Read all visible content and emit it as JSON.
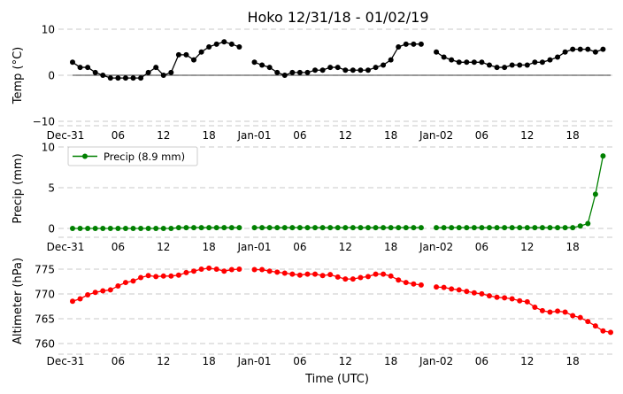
{
  "title": "Hoko 12/31/18 - 01/02/19",
  "xlabel": "Time (UTC)",
  "xticks": [
    "Dec-31",
    "06",
    "12",
    "18",
    "Jan-01",
    "06",
    "12",
    "18",
    "Jan-02",
    "06",
    "12",
    "18"
  ],
  "chart_data": [
    {
      "type": "line",
      "title": "Hoko 12/31/18 - 01/02/19",
      "ylabel": "Temp (°C)",
      "xlabel": "",
      "x_hours": "0..71 (hourly, first point at Dec-31 00 UTC)",
      "xlim_hours": [
        0,
        71
      ],
      "ylim": [
        -11,
        10
      ],
      "yticks": [
        "10",
        "0",
        "−10"
      ],
      "grid": "horizontal dashed",
      "zero_line": true,
      "color": "#000000",
      "series": [
        {
          "name": "Temp",
          "values": [
            2.8,
            1.7,
            1.7,
            0.6,
            0.0,
            -0.6,
            -0.6,
            -0.6,
            -0.6,
            -0.6,
            0.6,
            1.7,
            0.0,
            0.6,
            4.4,
            4.4,
            3.3,
            5.0,
            6.1,
            6.7,
            7.2,
            6.7,
            6.1,
            null,
            2.8,
            2.2,
            1.7,
            0.6,
            0.0,
            0.6,
            0.6,
            0.6,
            1.1,
            1.1,
            1.7,
            1.7,
            1.1,
            1.1,
            1.1,
            1.1,
            1.7,
            2.2,
            3.3,
            6.1,
            6.7,
            6.7,
            6.7,
            null,
            5.0,
            3.9,
            3.3,
            2.8,
            2.8,
            2.8,
            2.8,
            2.2,
            1.7,
            1.7,
            2.2,
            2.2,
            2.2,
            2.8,
            2.8,
            3.3,
            3.9,
            5.0,
            5.6,
            5.6,
            5.6,
            5.0,
            5.6,
            null
          ]
        }
      ]
    },
    {
      "type": "line",
      "ylabel": "Precip (mm)",
      "xlabel": "",
      "xlim_hours": [
        0,
        71
      ],
      "ylim": [
        -1,
        10
      ],
      "yticks": [
        "10",
        "5",
        "0"
      ],
      "grid": "horizontal dashed",
      "legend": "top-left",
      "color": "#008000",
      "series": [
        {
          "name": "Precip (8.9 mm)",
          "values": [
            0,
            0,
            0,
            0,
            0,
            0,
            0,
            0,
            0,
            0,
            0,
            0,
            0,
            0,
            0.1,
            0.1,
            0.1,
            0.1,
            0.1,
            0.1,
            0.1,
            0.1,
            0.1,
            null,
            0.1,
            0.1,
            0.1,
            0.1,
            0.1,
            0.1,
            0.1,
            0.1,
            0.1,
            0.1,
            0.1,
            0.1,
            0.1,
            0.1,
            0.1,
            0.1,
            0.1,
            0.1,
            0.1,
            0.1,
            0.1,
            0.1,
            0.1,
            null,
            0.1,
            0.1,
            0.1,
            0.1,
            0.1,
            0.1,
            0.1,
            0.1,
            0.1,
            0.1,
            0.1,
            0.1,
            0.1,
            0.1,
            0.1,
            0.1,
            0.1,
            0.1,
            0.1,
            0.3,
            0.6,
            4.2,
            8.9,
            null
          ]
        }
      ]
    },
    {
      "type": "line",
      "ylabel": "Altimeter (hPa)",
      "xlabel": "Time (UTC)",
      "xlim_hours": [
        0,
        71
      ],
      "ylim": [
        759,
        777
      ],
      "yticks": [
        "775",
        "770",
        "765",
        "760"
      ],
      "grid": "horizontal dashed",
      "color": "#ff0000",
      "series": [
        {
          "name": "Altimeter",
          "values": [
            768.5,
            769.0,
            769.8,
            770.3,
            770.6,
            770.8,
            771.6,
            772.3,
            772.6,
            773.3,
            773.7,
            773.5,
            773.6,
            773.6,
            773.8,
            774.3,
            774.6,
            775.0,
            775.2,
            775.0,
            774.6,
            774.9,
            775.0,
            null,
            774.9,
            774.9,
            774.6,
            774.4,
            774.2,
            774.0,
            773.8,
            774.0,
            774.0,
            773.7,
            773.9,
            773.4,
            773.0,
            773.0,
            773.3,
            773.5,
            774.0,
            774.0,
            773.6,
            772.8,
            772.3,
            772.0,
            771.8,
            null,
            771.4,
            771.3,
            771.0,
            770.8,
            770.5,
            770.2,
            770.0,
            769.6,
            769.3,
            769.2,
            769.0,
            768.6,
            768.4,
            767.3,
            766.6,
            766.3,
            766.5,
            766.3,
            765.6,
            765.2,
            764.4,
            763.5,
            762.5,
            762.2
          ]
        }
      ]
    }
  ]
}
